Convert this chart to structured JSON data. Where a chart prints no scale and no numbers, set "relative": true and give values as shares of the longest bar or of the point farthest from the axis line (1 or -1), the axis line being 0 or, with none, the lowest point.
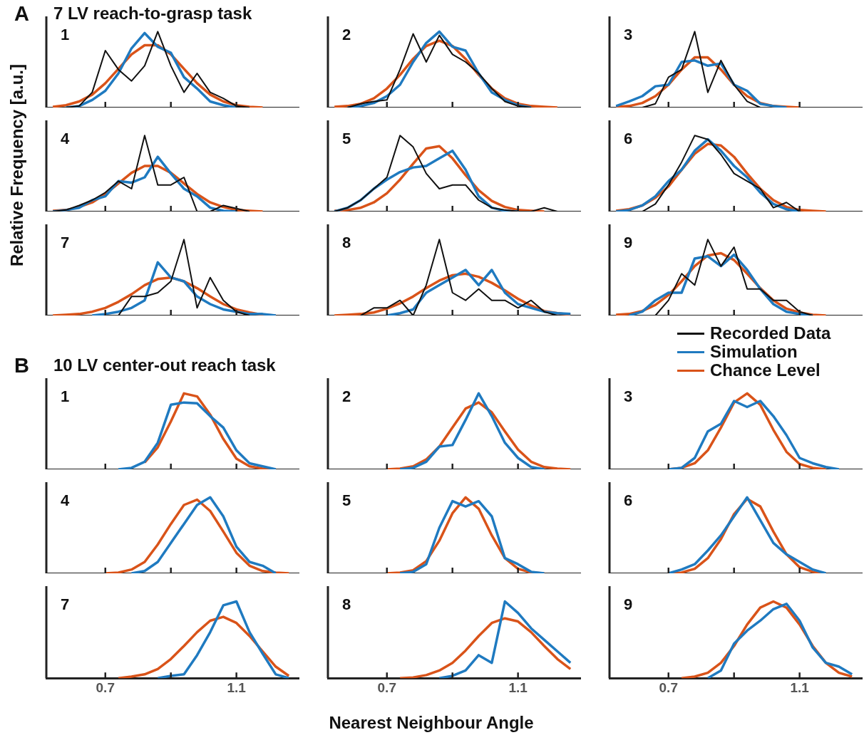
{
  "chart_data": [
    {
      "type": "line",
      "title": "1",
      "annotations": [
        "A",
        "7 LV reach-to-grasp task"
      ],
      "relative": true,
      "tick_labels": false,
      "xlim": [
        0.52,
        1.29
      ],
      "xticks": [
        {
          "value": 0.7,
          "label": null
        },
        {
          "value": 0.9,
          "label": null
        },
        {
          "value": 1.1,
          "label": null
        }
      ],
      "x": [
        0.54,
        0.58,
        0.62,
        0.66,
        0.7,
        0.74,
        0.78,
        0.82,
        0.86,
        0.9,
        0.94,
        0.98,
        1.02,
        1.06,
        1.1,
        1.14,
        1.18
      ],
      "series": [
        {
          "color": "#111111",
          "values": [
            null,
            0,
            0.02,
            0.2,
            0.75,
            0.5,
            0.35,
            0.55,
            1,
            0.55,
            0.2,
            0.45,
            0.2,
            0.12,
            0.02,
            0,
            null
          ]
        },
        {
          "color": "#1f7ac0",
          "values": [
            null,
            0,
            0.02,
            0.1,
            0.22,
            0.45,
            0.78,
            0.98,
            0.8,
            0.72,
            0.4,
            0.25,
            0.08,
            0.03,
            0,
            null,
            null
          ]
        },
        {
          "color": "#d95319",
          "values": [
            0.01,
            0.03,
            0.08,
            0.17,
            0.32,
            0.51,
            0.7,
            0.82,
            0.82,
            0.7,
            0.51,
            0.32,
            0.17,
            0.08,
            0.03,
            0.01,
            0
          ]
        }
      ]
    },
    {
      "type": "line",
      "title": "2",
      "relative": true,
      "tick_labels": false,
      "xlim": [
        0.52,
        1.29
      ],
      "xticks": [
        {
          "value": 0.7,
          "label": null
        },
        {
          "value": 0.9,
          "label": null
        },
        {
          "value": 1.1,
          "label": null
        }
      ],
      "x": [
        0.54,
        0.58,
        0.62,
        0.66,
        0.7,
        0.74,
        0.78,
        0.82,
        0.86,
        0.9,
        0.94,
        0.98,
        1.02,
        1.06,
        1.1,
        1.14,
        1.18,
        1.22
      ],
      "series": [
        {
          "color": "#111111",
          "values": [
            null,
            0,
            0.05,
            0.08,
            0.1,
            0.5,
            0.97,
            0.6,
            0.95,
            0.7,
            0.6,
            0.45,
            0.25,
            0.08,
            0.02,
            0,
            null,
            null
          ]
        },
        {
          "color": "#1f7ac0",
          "values": [
            null,
            0,
            0.02,
            0.06,
            0.15,
            0.3,
            0.6,
            0.85,
            1,
            0.8,
            0.75,
            0.45,
            0.2,
            0.1,
            0.03,
            0,
            null,
            null
          ]
        },
        {
          "color": "#d95319",
          "values": [
            0.01,
            0.02,
            0.05,
            0.12,
            0.25,
            0.43,
            0.64,
            0.81,
            0.88,
            0.81,
            0.64,
            0.43,
            0.25,
            0.12,
            0.05,
            0.02,
            0.01,
            0
          ]
        }
      ]
    },
    {
      "type": "line",
      "title": "3",
      "relative": true,
      "tick_labels": false,
      "xlim": [
        0.52,
        1.29
      ],
      "xticks": [
        {
          "value": 0.7,
          "label": null
        },
        {
          "value": 0.9,
          "label": null
        },
        {
          "value": 1.1,
          "label": null
        }
      ],
      "x": [
        0.54,
        0.58,
        0.62,
        0.66,
        0.7,
        0.74,
        0.78,
        0.82,
        0.86,
        0.9,
        0.94,
        0.98,
        1.02,
        1.06,
        1.1
      ],
      "series": [
        {
          "color": "#111111",
          "values": [
            null,
            null,
            0,
            0.05,
            0.4,
            0.5,
            1,
            0.2,
            0.62,
            0.3,
            0.08,
            0,
            null,
            null,
            null
          ]
        },
        {
          "color": "#1f7ac0",
          "values": [
            0.02,
            0.08,
            0.15,
            0.28,
            0.3,
            0.6,
            0.62,
            0.55,
            0.58,
            0.3,
            0.22,
            0.05,
            0.02,
            0,
            null
          ]
        },
        {
          "color": "#d95319",
          "values": [
            0.01,
            0.02,
            0.06,
            0.15,
            0.3,
            0.5,
            0.66,
            0.66,
            0.5,
            0.3,
            0.15,
            0.06,
            0.02,
            0.01,
            0
          ]
        }
      ]
    },
    {
      "type": "line",
      "title": "4",
      "ylabel": "Relative Frequency [a.u.]",
      "relative": true,
      "tick_labels": false,
      "xlim": [
        0.52,
        1.29
      ],
      "xticks": [
        {
          "value": 0.7,
          "label": null
        },
        {
          "value": 0.9,
          "label": null
        },
        {
          "value": 1.1,
          "label": null
        }
      ],
      "x": [
        0.54,
        0.58,
        0.62,
        0.66,
        0.7,
        0.74,
        0.78,
        0.82,
        0.86,
        0.9,
        0.94,
        0.98,
        1.02,
        1.06,
        1.1,
        1.14,
        1.18
      ],
      "series": [
        {
          "color": "#111111",
          "values": [
            0,
            0.02,
            0.08,
            0.15,
            0.25,
            0.4,
            0.3,
            1,
            0.35,
            0.35,
            0.45,
            0,
            0,
            0.08,
            0.04,
            0,
            null
          ]
        },
        {
          "color": "#1f7ac0",
          "values": [
            0,
            0.02,
            0.05,
            0.15,
            0.2,
            0.4,
            0.38,
            0.45,
            0.72,
            0.5,
            0.3,
            0.2,
            0.05,
            0.01,
            0,
            null,
            null
          ]
        },
        {
          "color": "#d95319",
          "values": [
            0.01,
            0.02,
            0.06,
            0.12,
            0.23,
            0.37,
            0.51,
            0.6,
            0.6,
            0.51,
            0.37,
            0.23,
            0.12,
            0.06,
            0.02,
            0.01,
            0
          ]
        }
      ]
    },
    {
      "type": "line",
      "title": "5",
      "relative": true,
      "tick_labels": false,
      "xlim": [
        0.52,
        1.29
      ],
      "xticks": [
        {
          "value": 0.7,
          "label": null
        },
        {
          "value": 0.9,
          "label": null
        },
        {
          "value": 1.1,
          "label": null
        }
      ],
      "x": [
        0.54,
        0.58,
        0.62,
        0.66,
        0.7,
        0.74,
        0.78,
        0.82,
        0.86,
        0.9,
        0.94,
        0.98,
        1.02,
        1.06,
        1.1,
        1.14,
        1.18,
        1.22
      ],
      "series": [
        {
          "color": "#111111",
          "values": [
            0,
            0.05,
            0.15,
            0.3,
            0.45,
            1,
            0.85,
            0.5,
            0.3,
            0.35,
            0.35,
            0.15,
            0.05,
            0.02,
            0,
            0,
            0.05,
            0
          ]
        },
        {
          "color": "#1f7ac0",
          "values": [
            0,
            0.05,
            0.15,
            0.3,
            0.42,
            0.52,
            0.58,
            0.6,
            0.7,
            0.8,
            0.55,
            0.2,
            0.05,
            0.01,
            0,
            null,
            null,
            null
          ]
        },
        {
          "color": "#d95319",
          "values": [
            0.01,
            0.02,
            0.05,
            0.12,
            0.24,
            0.42,
            0.63,
            0.83,
            0.86,
            0.7,
            0.48,
            0.28,
            0.14,
            0.06,
            0.02,
            0.01,
            0,
            null
          ]
        }
      ]
    },
    {
      "type": "line",
      "title": "6",
      "relative": true,
      "tick_labels": false,
      "xlim": [
        0.52,
        1.29
      ],
      "xticks": [
        {
          "value": 0.7,
          "label": null
        },
        {
          "value": 0.9,
          "label": null
        },
        {
          "value": 1.1,
          "label": null
        }
      ],
      "x": [
        0.54,
        0.58,
        0.62,
        0.66,
        0.7,
        0.74,
        0.78,
        0.82,
        0.86,
        0.9,
        0.94,
        0.98,
        1.02,
        1.06,
        1.1,
        1.14,
        1.18
      ],
      "series": [
        {
          "color": "#111111",
          "values": [
            null,
            null,
            0,
            0.1,
            0.35,
            0.65,
            1,
            0.95,
            0.75,
            0.5,
            0.4,
            0.3,
            0.05,
            0.12,
            0,
            null,
            null
          ]
        },
        {
          "color": "#1f7ac0",
          "values": [
            0,
            0.02,
            0.08,
            0.2,
            0.4,
            0.55,
            0.8,
            0.95,
            0.8,
            0.6,
            0.45,
            0.25,
            0.1,
            0.03,
            0,
            null,
            null
          ]
        },
        {
          "color": "#d95319",
          "values": [
            0.01,
            0.03,
            0.08,
            0.18,
            0.33,
            0.55,
            0.76,
            0.89,
            0.87,
            0.72,
            0.5,
            0.3,
            0.15,
            0.06,
            0.02,
            0.01,
            0
          ]
        }
      ]
    },
    {
      "type": "line",
      "title": "7",
      "relative": true,
      "tick_labels": false,
      "xlim": [
        0.52,
        1.29
      ],
      "xticks": [
        {
          "value": 0.7,
          "label": null
        },
        {
          "value": 0.9,
          "label": null
        },
        {
          "value": 1.1,
          "label": null
        }
      ],
      "x": [
        0.54,
        0.58,
        0.62,
        0.66,
        0.7,
        0.74,
        0.78,
        0.82,
        0.86,
        0.9,
        0.94,
        0.98,
        1.02,
        1.06,
        1.1,
        1.14,
        1.18,
        1.22
      ],
      "series": [
        {
          "color": "#111111",
          "values": [
            null,
            null,
            null,
            null,
            null,
            0,
            0.25,
            0.25,
            0.3,
            0.45,
            1,
            0.1,
            0.5,
            0.2,
            0.05,
            0,
            null,
            null
          ]
        },
        {
          "color": "#1f7ac0",
          "values": [
            null,
            null,
            null,
            0,
            0.02,
            0.05,
            0.1,
            0.2,
            0.7,
            0.5,
            0.45,
            0.25,
            0.15,
            0.08,
            0.05,
            0.02,
            0.02,
            0
          ]
        },
        {
          "color": "#d95319",
          "values": [
            0,
            0.01,
            0.02,
            0.05,
            0.1,
            0.18,
            0.28,
            0.4,
            0.48,
            0.5,
            0.45,
            0.36,
            0.25,
            0.15,
            0.08,
            0.04,
            0.01,
            0
          ]
        }
      ]
    },
    {
      "type": "line",
      "title": "8",
      "relative": true,
      "tick_labels": false,
      "xlim": [
        0.52,
        1.29
      ],
      "xticks": [
        {
          "value": 0.7,
          "label": null
        },
        {
          "value": 0.9,
          "label": null
        },
        {
          "value": 1.1,
          "label": null
        }
      ],
      "x": [
        0.54,
        0.58,
        0.62,
        0.66,
        0.7,
        0.74,
        0.78,
        0.82,
        0.86,
        0.9,
        0.94,
        0.98,
        1.02,
        1.06,
        1.1,
        1.14,
        1.18,
        1.22,
        1.26
      ],
      "series": [
        {
          "color": "#111111",
          "values": [
            null,
            null,
            0,
            0.1,
            0.1,
            0.2,
            0,
            0.4,
            1,
            0.3,
            0.2,
            0.35,
            0.2,
            0.2,
            0.1,
            0.2,
            0.05,
            0,
            null
          ]
        },
        {
          "color": "#1f7ac0",
          "values": [
            null,
            null,
            null,
            null,
            0,
            0.03,
            0.08,
            0.3,
            0.4,
            0.5,
            0.6,
            0.4,
            0.6,
            0.3,
            0.15,
            0.1,
            0.05,
            0.03,
            0.02
          ]
        },
        {
          "color": "#d95319",
          "values": [
            0,
            0.01,
            0.02,
            0.04,
            0.09,
            0.16,
            0.25,
            0.36,
            0.46,
            0.53,
            0.55,
            0.51,
            0.43,
            0.33,
            0.22,
            0.13,
            0.06,
            0.03,
            0.01
          ]
        }
      ]
    },
    {
      "type": "line",
      "title": "9",
      "legend": "bottom",
      "relative": true,
      "tick_labels": false,
      "xlim": [
        0.52,
        1.29
      ],
      "xticks": [
        {
          "value": 0.7,
          "label": null
        },
        {
          "value": 0.9,
          "label": null
        },
        {
          "value": 1.1,
          "label": null
        }
      ],
      "x": [
        0.54,
        0.58,
        0.62,
        0.66,
        0.7,
        0.74,
        0.78,
        0.82,
        0.86,
        0.9,
        0.94,
        0.98,
        1.02,
        1.06,
        1.1,
        1.14,
        1.18
      ],
      "series": [
        {
          "name": "Recorded Data",
          "color": "#111111",
          "values": [
            null,
            null,
            null,
            0,
            0.2,
            0.55,
            0.4,
            1,
            0.65,
            0.9,
            0.35,
            0.35,
            0.2,
            0.2,
            0.05,
            0,
            null
          ]
        },
        {
          "name": "Simulation",
          "color": "#1f7ac0",
          "values": [
            null,
            0,
            0.05,
            0.2,
            0.3,
            0.3,
            0.75,
            0.78,
            0.65,
            0.8,
            0.6,
            0.35,
            0.15,
            0.05,
            0.02,
            0,
            null
          ]
        },
        {
          "name": "Chance Level",
          "color": "#d95319",
          "values": [
            0.01,
            0.02,
            0.06,
            0.14,
            0.27,
            0.45,
            0.65,
            0.79,
            0.82,
            0.73,
            0.55,
            0.36,
            0.2,
            0.09,
            0.04,
            0.01,
            0
          ]
        }
      ]
    },
    {
      "type": "line",
      "title": "1",
      "annotations": [
        "B",
        "10 LV center-out reach task"
      ],
      "relative": true,
      "tick_labels": false,
      "xlim": [
        0.52,
        1.29
      ],
      "xticks": [
        {
          "value": 0.7,
          "label": null
        },
        {
          "value": 0.9,
          "label": null
        },
        {
          "value": 1.1,
          "label": null
        }
      ],
      "x": [
        0.74,
        0.78,
        0.82,
        0.86,
        0.9,
        0.94,
        0.98,
        1.02,
        1.06,
        1.1,
        1.14,
        1.18,
        1.22
      ],
      "series": [
        {
          "color": "#1f7ac0",
          "values": [
            0,
            0.02,
            0.1,
            0.35,
            0.85,
            0.88,
            0.87,
            0.7,
            0.55,
            0.25,
            0.08,
            0.04,
            0
          ]
        },
        {
          "color": "#d95319",
          "values": [
            null,
            null,
            0.09,
            0.29,
            0.63,
            1,
            0.96,
            0.72,
            0.4,
            0.14,
            0.04,
            0.01,
            0
          ]
        }
      ]
    },
    {
      "type": "line",
      "title": "2",
      "relative": true,
      "tick_labels": false,
      "xlim": [
        0.52,
        1.29
      ],
      "xticks": [
        {
          "value": 0.7,
          "label": null
        },
        {
          "value": 0.9,
          "label": null
        },
        {
          "value": 1.1,
          "label": null
        }
      ],
      "x": [
        0.7,
        0.74,
        0.78,
        0.82,
        0.86,
        0.9,
        0.94,
        0.98,
        1.02,
        1.06,
        1.1,
        1.14,
        1.18,
        1.22,
        1.26
      ],
      "series": [
        {
          "color": "#1f7ac0",
          "values": [
            null,
            0,
            0.02,
            0.1,
            0.3,
            0.32,
            0.65,
            1,
            0.7,
            0.35,
            0.15,
            0.03,
            0,
            null,
            null
          ]
        },
        {
          "color": "#d95319",
          "values": [
            0,
            0.01,
            0.04,
            0.13,
            0.3,
            0.55,
            0.8,
            0.88,
            0.75,
            0.5,
            0.26,
            0.1,
            0.03,
            0.01,
            0
          ]
        }
      ]
    },
    {
      "type": "line",
      "title": "3",
      "relative": true,
      "tick_labels": false,
      "xlim": [
        0.52,
        1.29
      ],
      "xticks": [
        {
          "value": 0.7,
          "label": null
        },
        {
          "value": 0.9,
          "label": null
        },
        {
          "value": 1.1,
          "label": null
        }
      ],
      "x": [
        0.7,
        0.74,
        0.78,
        0.82,
        0.86,
        0.9,
        0.94,
        0.98,
        1.02,
        1.06,
        1.1,
        1.14,
        1.18,
        1.22
      ],
      "series": [
        {
          "color": "#1f7ac0",
          "values": [
            0,
            0.02,
            0.15,
            0.5,
            0.6,
            0.9,
            0.82,
            0.9,
            0.7,
            0.45,
            0.15,
            0.08,
            0.03,
            0
          ]
        },
        {
          "color": "#d95319",
          "values": [
            0,
            0.02,
            0.08,
            0.25,
            0.55,
            0.88,
            1,
            0.85,
            0.52,
            0.23,
            0.07,
            0.02,
            0,
            null
          ]
        }
      ]
    },
    {
      "type": "line",
      "title": "4",
      "relative": true,
      "tick_labels": false,
      "xlim": [
        0.52,
        1.29
      ],
      "xticks": [
        {
          "value": 0.7,
          "label": null
        },
        {
          "value": 0.9,
          "label": null
        },
        {
          "value": 1.1,
          "label": null
        }
      ],
      "x": [
        0.7,
        0.74,
        0.78,
        0.82,
        0.86,
        0.9,
        0.94,
        0.98,
        1.02,
        1.06,
        1.1,
        1.14,
        1.18,
        1.22,
        1.26
      ],
      "series": [
        {
          "color": "#1f7ac0",
          "values": [
            null,
            null,
            0,
            0.03,
            0.15,
            0.4,
            0.65,
            0.9,
            1,
            0.75,
            0.35,
            0.15,
            0.1,
            0,
            null
          ]
        },
        {
          "color": "#d95319",
          "values": [
            0,
            0.01,
            0.05,
            0.15,
            0.38,
            0.65,
            0.9,
            0.97,
            0.82,
            0.55,
            0.27,
            0.1,
            0.03,
            0.01,
            0
          ]
        }
      ]
    },
    {
      "type": "line",
      "title": "5",
      "relative": true,
      "tick_labels": false,
      "xlim": [
        0.52,
        1.29
      ],
      "xticks": [
        {
          "value": 0.7,
          "label": null
        },
        {
          "value": 0.9,
          "label": null
        },
        {
          "value": 1.1,
          "label": null
        }
      ],
      "x": [
        0.7,
        0.74,
        0.78,
        0.82,
        0.86,
        0.9,
        0.94,
        0.98,
        1.02,
        1.06,
        1.1,
        1.14,
        1.18
      ],
      "series": [
        {
          "color": "#1f7ac0",
          "values": [
            null,
            0,
            0.02,
            0.12,
            0.6,
            0.95,
            0.88,
            0.95,
            0.75,
            0.2,
            0.12,
            0.02,
            0
          ]
        },
        {
          "color": "#d95319",
          "values": [
            0,
            0.01,
            0.04,
            0.16,
            0.43,
            0.79,
            1,
            0.85,
            0.5,
            0.2,
            0.06,
            0.01,
            0
          ]
        }
      ]
    },
    {
      "type": "line",
      "title": "6",
      "relative": true,
      "tick_labels": false,
      "xlim": [
        0.52,
        1.29
      ],
      "xticks": [
        {
          "value": 0.7,
          "label": null
        },
        {
          "value": 0.9,
          "label": null
        },
        {
          "value": 1.1,
          "label": null
        }
      ],
      "x": [
        0.7,
        0.74,
        0.78,
        0.82,
        0.86,
        0.9,
        0.94,
        0.98,
        1.02,
        1.06,
        1.1,
        1.14,
        1.18
      ],
      "series": [
        {
          "color": "#1f7ac0",
          "values": [
            0,
            0.05,
            0.12,
            0.3,
            0.5,
            0.75,
            1,
            0.7,
            0.4,
            0.25,
            0.15,
            0.05,
            0
          ]
        },
        {
          "color": "#d95319",
          "values": [
            0,
            0.01,
            0.06,
            0.2,
            0.45,
            0.78,
            0.98,
            0.88,
            0.55,
            0.25,
            0.08,
            0.02,
            0
          ]
        }
      ]
    },
    {
      "type": "line",
      "title": "7",
      "relative": true,
      "tick_labels": "x",
      "xlim": [
        0.52,
        1.29
      ],
      "xticks": [
        {
          "value": 0.7,
          "label": "0.7"
        },
        {
          "value": 0.9,
          "label": null
        },
        {
          "value": 1.1,
          "label": "1.1"
        }
      ],
      "x": [
        0.74,
        0.78,
        0.82,
        0.86,
        0.9,
        0.94,
        0.98,
        1.02,
        1.06,
        1.1,
        1.14,
        1.18,
        1.22,
        1.26
      ],
      "series": [
        {
          "color": "#1f7ac0",
          "values": [
            null,
            null,
            null,
            0,
            0.03,
            0.05,
            0.3,
            0.6,
            0.95,
            1,
            0.6,
            0.32,
            0.05,
            0
          ]
        },
        {
          "color": "#d95319",
          "values": [
            0,
            0.02,
            0.05,
            0.12,
            0.25,
            0.42,
            0.6,
            0.75,
            0.8,
            0.72,
            0.55,
            0.35,
            0.15,
            0.03
          ]
        }
      ]
    },
    {
      "type": "line",
      "title": "8",
      "xlabel": "Nearest Neighbour Angle",
      "relative": true,
      "tick_labels": "x",
      "xlim": [
        0.52,
        1.29
      ],
      "xticks": [
        {
          "value": 0.7,
          "label": "0.7"
        },
        {
          "value": 0.9,
          "label": null
        },
        {
          "value": 1.1,
          "label": "1.1"
        }
      ],
      "x": [
        0.74,
        0.78,
        0.82,
        0.86,
        0.9,
        0.94,
        0.98,
        1.02,
        1.06,
        1.1,
        1.14,
        1.18,
        1.22,
        1.26
      ],
      "series": [
        {
          "color": "#1f7ac0",
          "values": [
            null,
            null,
            null,
            0,
            0.03,
            0.1,
            0.3,
            0.2,
            1,
            0.85,
            0.65,
            0.5,
            0.35,
            0.2
          ]
        },
        {
          "color": "#d95319",
          "values": [
            0,
            0.01,
            0.04,
            0.1,
            0.2,
            0.36,
            0.55,
            0.72,
            0.78,
            0.74,
            0.6,
            0.42,
            0.25,
            0.12
          ]
        }
      ]
    },
    {
      "type": "line",
      "title": "9",
      "relative": true,
      "tick_labels": "x",
      "xlim": [
        0.52,
        1.29
      ],
      "xticks": [
        {
          "value": 0.7,
          "label": "0.7"
        },
        {
          "value": 0.9,
          "label": null
        },
        {
          "value": 1.1,
          "label": "1.1"
        }
      ],
      "x": [
        0.74,
        0.78,
        0.82,
        0.86,
        0.9,
        0.94,
        0.98,
        1.02,
        1.06,
        1.1,
        1.14,
        1.18,
        1.22,
        1.26
      ],
      "series": [
        {
          "color": "#1f7ac0",
          "values": [
            null,
            null,
            0,
            0.1,
            0.45,
            0.62,
            0.75,
            0.9,
            0.97,
            0.75,
            0.4,
            0.2,
            0.15,
            0.05
          ]
        },
        {
          "color": "#d95319",
          "values": [
            0,
            0.02,
            0.07,
            0.2,
            0.42,
            0.7,
            0.92,
            1,
            0.92,
            0.7,
            0.42,
            0.2,
            0.07,
            0.02
          ]
        }
      ]
    }
  ]
}
